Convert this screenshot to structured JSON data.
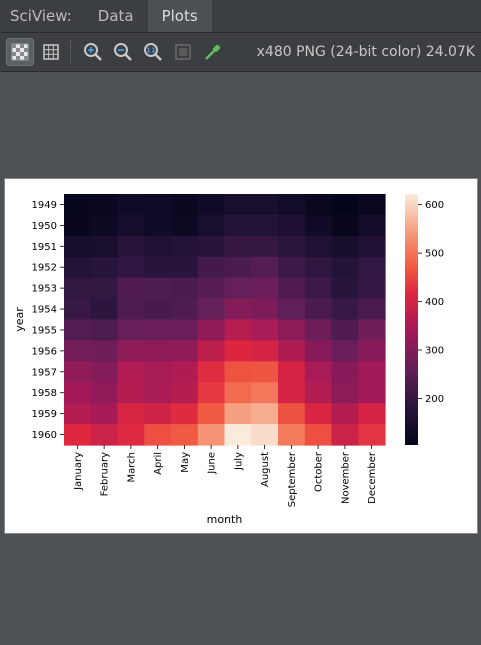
{
  "tabbar": {
    "app_label": "SciView:",
    "tabs": [
      {
        "label": "Data",
        "active": false
      },
      {
        "label": "Plots",
        "active": true
      }
    ]
  },
  "toolbar": {
    "icons": [
      "checkerboard-icon",
      "grid-icon",
      "zoom-in-icon",
      "zoom-out-icon",
      "actual-size-icon",
      "fit-icon",
      "color-picker-icon"
    ],
    "image_info": "x480 PNG (24-bit color) 24.07K"
  },
  "chart_data": {
    "type": "heatmap",
    "xlabel": "month",
    "ylabel": "year",
    "x": [
      "January",
      "February",
      "March",
      "April",
      "May",
      "June",
      "July",
      "August",
      "September",
      "October",
      "November",
      "December"
    ],
    "y": [
      "1949",
      "1950",
      "1951",
      "1952",
      "1953",
      "1954",
      "1955",
      "1956",
      "1957",
      "1958",
      "1959",
      "1960"
    ],
    "values": [
      [
        112,
        118,
        132,
        129,
        121,
        135,
        148,
        148,
        136,
        119,
        104,
        118
      ],
      [
        115,
        126,
        141,
        135,
        125,
        149,
        170,
        170,
        158,
        133,
        114,
        140
      ],
      [
        145,
        150,
        178,
        163,
        172,
        178,
        199,
        199,
        184,
        162,
        146,
        166
      ],
      [
        171,
        180,
        193,
        181,
        183,
        218,
        230,
        242,
        209,
        191,
        172,
        194
      ],
      [
        196,
        196,
        236,
        235,
        229,
        243,
        264,
        272,
        237,
        211,
        180,
        201
      ],
      [
        204,
        188,
        235,
        227,
        234,
        264,
        302,
        293,
        259,
        229,
        203,
        229
      ],
      [
        242,
        233,
        267,
        269,
        270,
        315,
        364,
        347,
        312,
        274,
        237,
        278
      ],
      [
        284,
        277,
        317,
        313,
        318,
        374,
        413,
        405,
        355,
        306,
        271,
        306
      ],
      [
        315,
        301,
        356,
        348,
        355,
        422,
        465,
        467,
        404,
        347,
        305,
        336
      ],
      [
        340,
        318,
        362,
        348,
        363,
        435,
        491,
        505,
        404,
        359,
        310,
        337
      ],
      [
        360,
        342,
        406,
        396,
        420,
        472,
        548,
        559,
        463,
        407,
        362,
        405
      ],
      [
        417,
        391,
        419,
        461,
        472,
        535,
        622,
        606,
        508,
        461,
        390,
        432
      ]
    ],
    "colorbar": {
      "ticks": [
        200,
        300,
        400,
        500,
        600
      ],
      "range": [
        104,
        622
      ],
      "colormap": "rocket"
    }
  }
}
